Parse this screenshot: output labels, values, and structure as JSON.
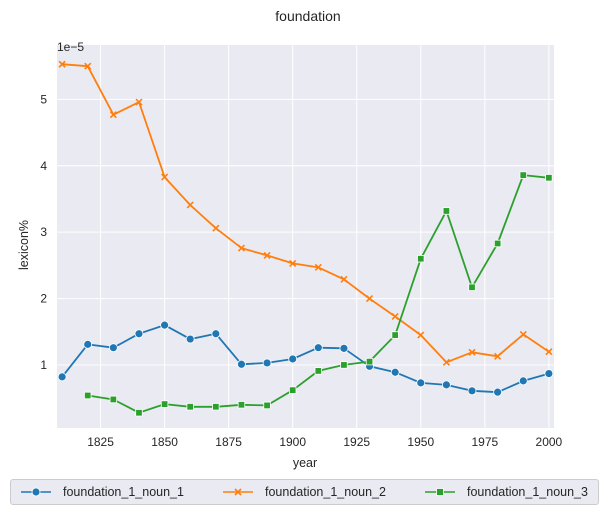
{
  "chart_data": {
    "type": "line",
    "title": "foundation",
    "xlabel": "year",
    "ylabel": "lexicon%",
    "y_offset_text": "1e−5",
    "y_scale_factor": 1e-05,
    "xlim": [
      1808,
      2002
    ],
    "ylim": [
      0.05,
      5.82
    ],
    "x_ticks": [
      1825,
      1850,
      1875,
      1900,
      1925,
      1950,
      1975,
      2000
    ],
    "y_ticks": [
      1,
      2,
      3,
      4,
      5
    ],
    "grid": true,
    "legend_position": "bottom-center",
    "series": [
      {
        "name": "foundation_1_noun_1",
        "color": "#1f77b4",
        "marker": "circle",
        "x": [
          1810,
          1820,
          1830,
          1840,
          1850,
          1860,
          1870,
          1880,
          1890,
          1900,
          1910,
          1920,
          1930,
          1940,
          1950,
          1960,
          1970,
          1980,
          1990,
          2000
        ],
        "values": [
          0.82,
          1.31,
          1.26,
          1.47,
          1.6,
          1.39,
          1.47,
          1.01,
          1.03,
          1.09,
          1.26,
          1.25,
          0.98,
          0.89,
          0.73,
          0.7,
          0.61,
          0.59,
          0.76,
          0.87
        ]
      },
      {
        "name": "foundation_1_noun_2",
        "color": "#ff7f0e",
        "marker": "x",
        "x": [
          1810,
          1820,
          1830,
          1840,
          1850,
          1860,
          1870,
          1880,
          1890,
          1900,
          1910,
          1920,
          1930,
          1940,
          1950,
          1960,
          1970,
          1980,
          1990,
          2000
        ],
        "values": [
          5.53,
          5.5,
          4.77,
          4.96,
          3.83,
          3.41,
          3.06,
          2.76,
          2.65,
          2.53,
          2.47,
          2.29,
          2.0,
          1.73,
          1.45,
          1.04,
          1.19,
          1.13,
          1.46,
          1.2
        ]
      },
      {
        "name": "foundation_1_noun_3",
        "color": "#2ca02c",
        "marker": "square",
        "x": [
          1820,
          1830,
          1840,
          1850,
          1860,
          1870,
          1880,
          1890,
          1900,
          1910,
          1920,
          1930,
          1940,
          1950,
          1960,
          1970,
          1980,
          1990,
          2000
        ],
        "values": [
          0.54,
          0.48,
          0.28,
          0.41,
          0.37,
          0.37,
          0.4,
          0.39,
          0.62,
          0.91,
          1.0,
          1.05,
          1.45,
          2.6,
          3.32,
          2.17,
          2.83,
          3.86,
          3.82
        ]
      }
    ]
  }
}
